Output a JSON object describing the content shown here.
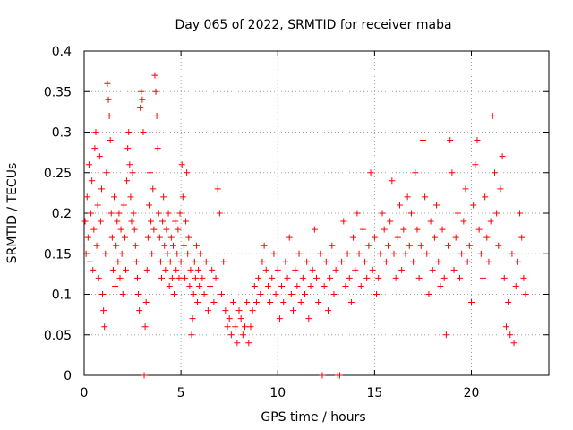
{
  "chart_data": {
    "type": "scatter",
    "title": "Day 065 of 2022, SRMTID for receiver maba",
    "xlabel": "GPS time / hours",
    "ylabel": "SRMTID / TECUs",
    "xlim": [
      0,
      24
    ],
    "ylim": [
      0,
      0.4
    ],
    "xticks": [
      0,
      5,
      10,
      15,
      20
    ],
    "xtick_labels": [
      "0",
      "5",
      "10",
      "15",
      "20"
    ],
    "yticks": [
      0,
      0.05,
      0.1,
      0.15,
      0.2,
      0.25,
      0.3,
      0.35,
      0.4
    ],
    "ytick_labels": [
      "0",
      "0.05",
      "0.1",
      "0.15",
      "0.2",
      "0.25",
      "0.3",
      "0.35",
      "0.4"
    ],
    "grid": true,
    "marker": "+",
    "color": "#ff0000",
    "series": [
      {
        "name": "SRMTID",
        "points": [
          [
            0.05,
            0.19
          ],
          [
            0.1,
            0.15
          ],
          [
            0.15,
            0.22
          ],
          [
            0.2,
            0.17
          ],
          [
            0.25,
            0.26
          ],
          [
            0.3,
            0.14
          ],
          [
            0.35,
            0.2
          ],
          [
            0.4,
            0.24
          ],
          [
            0.45,
            0.13
          ],
          [
            0.5,
            0.18
          ],
          [
            0.55,
            0.28
          ],
          [
            0.6,
            0.3
          ],
          [
            0.65,
            0.16
          ],
          [
            0.7,
            0.21
          ],
          [
            0.75,
            0.12
          ],
          [
            0.8,
            0.27
          ],
          [
            0.85,
            0.19
          ],
          [
            0.9,
            0.23
          ],
          [
            0.95,
            0.1
          ],
          [
            1.0,
            0.08
          ],
          [
            1.05,
            0.06
          ],
          [
            1.1,
            0.15
          ],
          [
            1.15,
            0.25
          ],
          [
            1.2,
            0.36
          ],
          [
            1.25,
            0.34
          ],
          [
            1.3,
            0.32
          ],
          [
            1.35,
            0.29
          ],
          [
            1.4,
            0.2
          ],
          [
            1.45,
            0.17
          ],
          [
            1.5,
            0.13
          ],
          [
            1.55,
            0.22
          ],
          [
            1.6,
            0.11
          ],
          [
            1.65,
            0.16
          ],
          [
            1.7,
            0.19
          ],
          [
            1.75,
            0.14
          ],
          [
            1.8,
            0.2
          ],
          [
            1.85,
            0.12
          ],
          [
            1.9,
            0.18
          ],
          [
            1.95,
            0.15
          ],
          [
            2.0,
            0.1
          ],
          [
            2.05,
            0.21
          ],
          [
            2.1,
            0.17
          ],
          [
            2.15,
            0.13
          ],
          [
            2.2,
            0.24
          ],
          [
            2.25,
            0.28
          ],
          [
            2.3,
            0.3
          ],
          [
            2.35,
            0.26
          ],
          [
            2.4,
            0.22
          ],
          [
            2.45,
            0.19
          ],
          [
            2.5,
            0.25
          ],
          [
            2.55,
            0.2
          ],
          [
            2.6,
            0.18
          ],
          [
            2.65,
            0.16
          ],
          [
            2.7,
            0.14
          ],
          [
            2.75,
            0.12
          ],
          [
            2.8,
            0.1
          ],
          [
            2.85,
            0.08
          ],
          [
            2.9,
            0.33
          ],
          [
            2.95,
            0.35
          ],
          [
            3.0,
            0.34
          ],
          [
            3.05,
            0.3
          ],
          [
            3.1,
            0.0
          ],
          [
            3.15,
            0.06
          ],
          [
            3.2,
            0.09
          ],
          [
            3.25,
            0.13
          ],
          [
            3.3,
            0.17
          ],
          [
            3.35,
            0.21
          ],
          [
            3.4,
            0.25
          ],
          [
            3.45,
            0.19
          ],
          [
            3.5,
            0.15
          ],
          [
            3.55,
            0.23
          ],
          [
            3.6,
            0.18
          ],
          [
            3.65,
            0.37
          ],
          [
            3.7,
            0.35
          ],
          [
            3.75,
            0.32
          ],
          [
            3.8,
            0.28
          ],
          [
            3.85,
            0.2
          ],
          [
            3.9,
            0.17
          ],
          [
            3.95,
            0.14
          ],
          [
            4.0,
            0.12
          ],
          [
            4.05,
            0.19
          ],
          [
            4.1,
            0.22
          ],
          [
            4.15,
            0.16
          ],
          [
            4.2,
            0.13
          ],
          [
            4.25,
            0.18
          ],
          [
            4.3,
            0.15
          ],
          [
            4.35,
            0.2
          ],
          [
            4.4,
            0.11
          ],
          [
            4.45,
            0.14
          ],
          [
            4.5,
            0.17
          ],
          [
            4.55,
            0.12
          ],
          [
            4.6,
            0.16
          ],
          [
            4.65,
            0.1
          ],
          [
            4.7,
            0.19
          ],
          [
            4.75,
            0.13
          ],
          [
            4.8,
            0.15
          ],
          [
            4.85,
            0.18
          ],
          [
            4.9,
            0.12
          ],
          [
            4.95,
            0.2
          ],
          [
            5.0,
            0.14
          ],
          [
            5.05,
            0.26
          ],
          [
            5.1,
            0.22
          ],
          [
            5.15,
            0.16
          ],
          [
            5.2,
            0.12
          ],
          [
            5.25,
            0.19
          ],
          [
            5.3,
            0.25
          ],
          [
            5.35,
            0.15
          ],
          [
            5.4,
            0.17
          ],
          [
            5.45,
            0.11
          ],
          [
            5.5,
            0.13
          ],
          [
            5.55,
            0.05
          ],
          [
            5.6,
            0.07
          ],
          [
            5.65,
            0.1
          ],
          [
            5.7,
            0.14
          ],
          [
            5.75,
            0.12
          ],
          [
            5.8,
            0.16
          ],
          [
            5.85,
            0.09
          ],
          [
            5.9,
            0.13
          ],
          [
            5.95,
            0.11
          ],
          [
            6.0,
            0.15
          ],
          [
            6.1,
            0.12
          ],
          [
            6.2,
            0.1
          ],
          [
            6.3,
            0.14
          ],
          [
            6.4,
            0.08
          ],
          [
            6.5,
            0.11
          ],
          [
            6.6,
            0.13
          ],
          [
            6.7,
            0.09
          ],
          [
            6.8,
            0.12
          ],
          [
            6.9,
            0.23
          ],
          [
            7.0,
            0.2
          ],
          [
            7.1,
            0.1
          ],
          [
            7.2,
            0.14
          ],
          [
            7.3,
            0.08
          ],
          [
            7.4,
            0.06
          ],
          [
            7.5,
            0.07
          ],
          [
            7.6,
            0.05
          ],
          [
            7.7,
            0.09
          ],
          [
            7.8,
            0.06
          ],
          [
            7.9,
            0.04
          ],
          [
            8.0,
            0.08
          ],
          [
            8.1,
            0.07
          ],
          [
            8.2,
            0.05
          ],
          [
            8.3,
            0.06
          ],
          [
            8.4,
            0.09
          ],
          [
            8.5,
            0.04
          ],
          [
            8.6,
            0.06
          ],
          [
            8.7,
            0.08
          ],
          [
            8.8,
            0.11
          ],
          [
            8.9,
            0.09
          ],
          [
            9.0,
            0.12
          ],
          [
            9.1,
            0.1
          ],
          [
            9.2,
            0.14
          ],
          [
            9.3,
            0.16
          ],
          [
            9.4,
            0.13
          ],
          [
            9.5,
            0.11
          ],
          [
            9.6,
            0.09
          ],
          [
            9.7,
            0.12
          ],
          [
            9.8,
            0.15
          ],
          [
            9.9,
            0.1
          ],
          [
            10.0,
            0.13
          ],
          [
            10.1,
            0.07
          ],
          [
            10.2,
            0.11
          ],
          [
            10.3,
            0.09
          ],
          [
            10.4,
            0.14
          ],
          [
            10.5,
            0.12
          ],
          [
            10.6,
            0.17
          ],
          [
            10.7,
            0.1
          ],
          [
            10.8,
            0.08
          ],
          [
            10.9,
            0.13
          ],
          [
            11.0,
            0.11
          ],
          [
            11.1,
            0.15
          ],
          [
            11.2,
            0.09
          ],
          [
            11.3,
            0.12
          ],
          [
            11.4,
            0.1
          ],
          [
            11.5,
            0.14
          ],
          [
            11.6,
            0.07
          ],
          [
            11.7,
            0.11
          ],
          [
            11.8,
            0.13
          ],
          [
            11.9,
            0.18
          ],
          [
            12.0,
            0.12
          ],
          [
            12.1,
            0.09
          ],
          [
            12.2,
            0.15
          ],
          [
            12.3,
            0.0
          ],
          [
            12.4,
            0.11
          ],
          [
            12.5,
            0.14
          ],
          [
            12.6,
            0.08
          ],
          [
            12.7,
            0.12
          ],
          [
            12.8,
            0.16
          ],
          [
            12.9,
            0.1
          ],
          [
            13.0,
            0.13
          ],
          [
            13.1,
            0.0
          ],
          [
            13.2,
            0.0
          ],
          [
            13.3,
            0.14
          ],
          [
            13.4,
            0.19
          ],
          [
            13.5,
            0.11
          ],
          [
            13.6,
            0.15
          ],
          [
            13.7,
            0.12
          ],
          [
            13.8,
            0.09
          ],
          [
            13.9,
            0.17
          ],
          [
            14.0,
            0.13
          ],
          [
            14.1,
            0.2
          ],
          [
            14.2,
            0.15
          ],
          [
            14.3,
            0.11
          ],
          [
            14.4,
            0.18
          ],
          [
            14.5,
            0.14
          ],
          [
            14.6,
            0.12
          ],
          [
            14.7,
            0.16
          ],
          [
            14.8,
            0.25
          ],
          [
            14.9,
            0.13
          ],
          [
            15.0,
            0.17
          ],
          [
            15.1,
            0.1
          ],
          [
            15.2,
            0.12
          ],
          [
            15.3,
            0.15
          ],
          [
            15.4,
            0.2
          ],
          [
            15.5,
            0.18
          ],
          [
            15.6,
            0.14
          ],
          [
            15.7,
            0.16
          ],
          [
            15.8,
            0.19
          ],
          [
            15.9,
            0.24
          ],
          [
            16.0,
            0.15
          ],
          [
            16.1,
            0.12
          ],
          [
            16.2,
            0.17
          ],
          [
            16.3,
            0.21
          ],
          [
            16.4,
            0.13
          ],
          [
            16.5,
            0.18
          ],
          [
            16.6,
            0.15
          ],
          [
            16.7,
            0.22
          ],
          [
            16.8,
            0.16
          ],
          [
            16.9,
            0.2
          ],
          [
            17.0,
            0.14
          ],
          [
            17.1,
            0.25
          ],
          [
            17.2,
            0.18
          ],
          [
            17.3,
            0.12
          ],
          [
            17.4,
            0.16
          ],
          [
            17.5,
            0.29
          ],
          [
            17.6,
            0.22
          ],
          [
            17.7,
            0.15
          ],
          [
            17.8,
            0.1
          ],
          [
            17.9,
            0.19
          ],
          [
            18.0,
            0.13
          ],
          [
            18.1,
            0.17
          ],
          [
            18.2,
            0.21
          ],
          [
            18.3,
            0.14
          ],
          [
            18.4,
            0.11
          ],
          [
            18.5,
            0.18
          ],
          [
            18.6,
            0.12
          ],
          [
            18.7,
            0.05
          ],
          [
            18.8,
            0.16
          ],
          [
            18.9,
            0.29
          ],
          [
            19.0,
            0.25
          ],
          [
            19.1,
            0.13
          ],
          [
            19.2,
            0.17
          ],
          [
            19.3,
            0.2
          ],
          [
            19.4,
            0.12
          ],
          [
            19.5,
            0.15
          ],
          [
            19.6,
            0.19
          ],
          [
            19.7,
            0.23
          ],
          [
            19.8,
            0.14
          ],
          [
            19.9,
            0.16
          ],
          [
            20.0,
            0.09
          ],
          [
            20.1,
            0.21
          ],
          [
            20.2,
            0.26
          ],
          [
            20.3,
            0.29
          ],
          [
            20.4,
            0.18
          ],
          [
            20.5,
            0.15
          ],
          [
            20.6,
            0.12
          ],
          [
            20.7,
            0.22
          ],
          [
            20.8,
            0.17
          ],
          [
            20.9,
            0.14
          ],
          [
            21.0,
            0.19
          ],
          [
            21.1,
            0.32
          ],
          [
            21.2,
            0.25
          ],
          [
            21.3,
            0.2
          ],
          [
            21.4,
            0.16
          ],
          [
            21.5,
            0.23
          ],
          [
            21.6,
            0.27
          ],
          [
            21.7,
            0.12
          ],
          [
            21.8,
            0.06
          ],
          [
            21.9,
            0.09
          ],
          [
            22.0,
            0.05
          ],
          [
            22.1,
            0.15
          ],
          [
            22.2,
            0.04
          ],
          [
            22.3,
            0.11
          ],
          [
            22.4,
            0.14
          ],
          [
            22.5,
            0.2
          ],
          [
            22.6,
            0.17
          ],
          [
            22.7,
            0.12
          ],
          [
            22.8,
            0.1
          ]
        ]
      }
    ]
  }
}
